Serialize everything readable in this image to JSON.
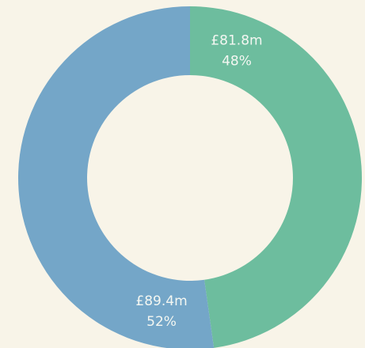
{
  "chart_data": {
    "type": "donut",
    "categories": [
      null,
      null
    ],
    "values": [
      81.8,
      89.4
    ],
    "value_labels": [
      "£81.8m",
      "£89.4m"
    ],
    "percentages": [
      48,
      52
    ],
    "percentage_labels": [
      "48%",
      "52%"
    ],
    "colors": [
      "#6dbd9e",
      "#74a6c8"
    ]
  }
}
